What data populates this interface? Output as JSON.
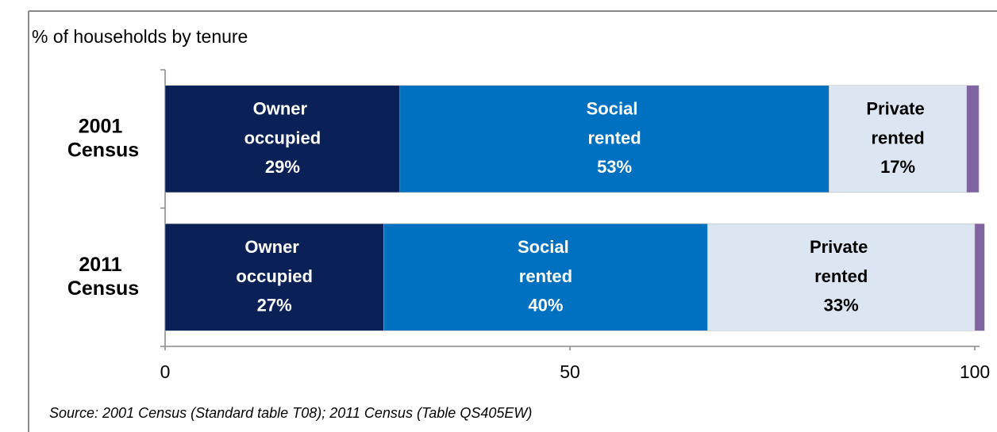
{
  "chart_data": {
    "type": "stacked-barh",
    "title": "% of households by tenure",
    "note": "Source: 2001 Census (Standard table T08); 2011 Census (Table QS405EW)",
    "categories": [
      "2001 Census",
      "2011 Census"
    ],
    "series": [
      {
        "name": "Owner occupied",
        "color": "#0a2158",
        "values": [
          29,
          27
        ],
        "value_labels": [
          "29%",
          "27%"
        ]
      },
      {
        "name": "Social rented",
        "color": "#0070c0",
        "values": [
          53,
          40
        ],
        "value_labels": [
          "53%",
          "40%"
        ]
      },
      {
        "name": "Private rented",
        "color": "#dce6f2",
        "values": [
          17,
          33
        ],
        "value_labels": [
          "17%",
          "33%"
        ]
      },
      {
        "color": "#8064a2",
        "values": [
          1.5,
          1.2
        ]
      }
    ],
    "xlim": [
      0,
      100
    ],
    "xticks": [
      0,
      50,
      100
    ]
  }
}
